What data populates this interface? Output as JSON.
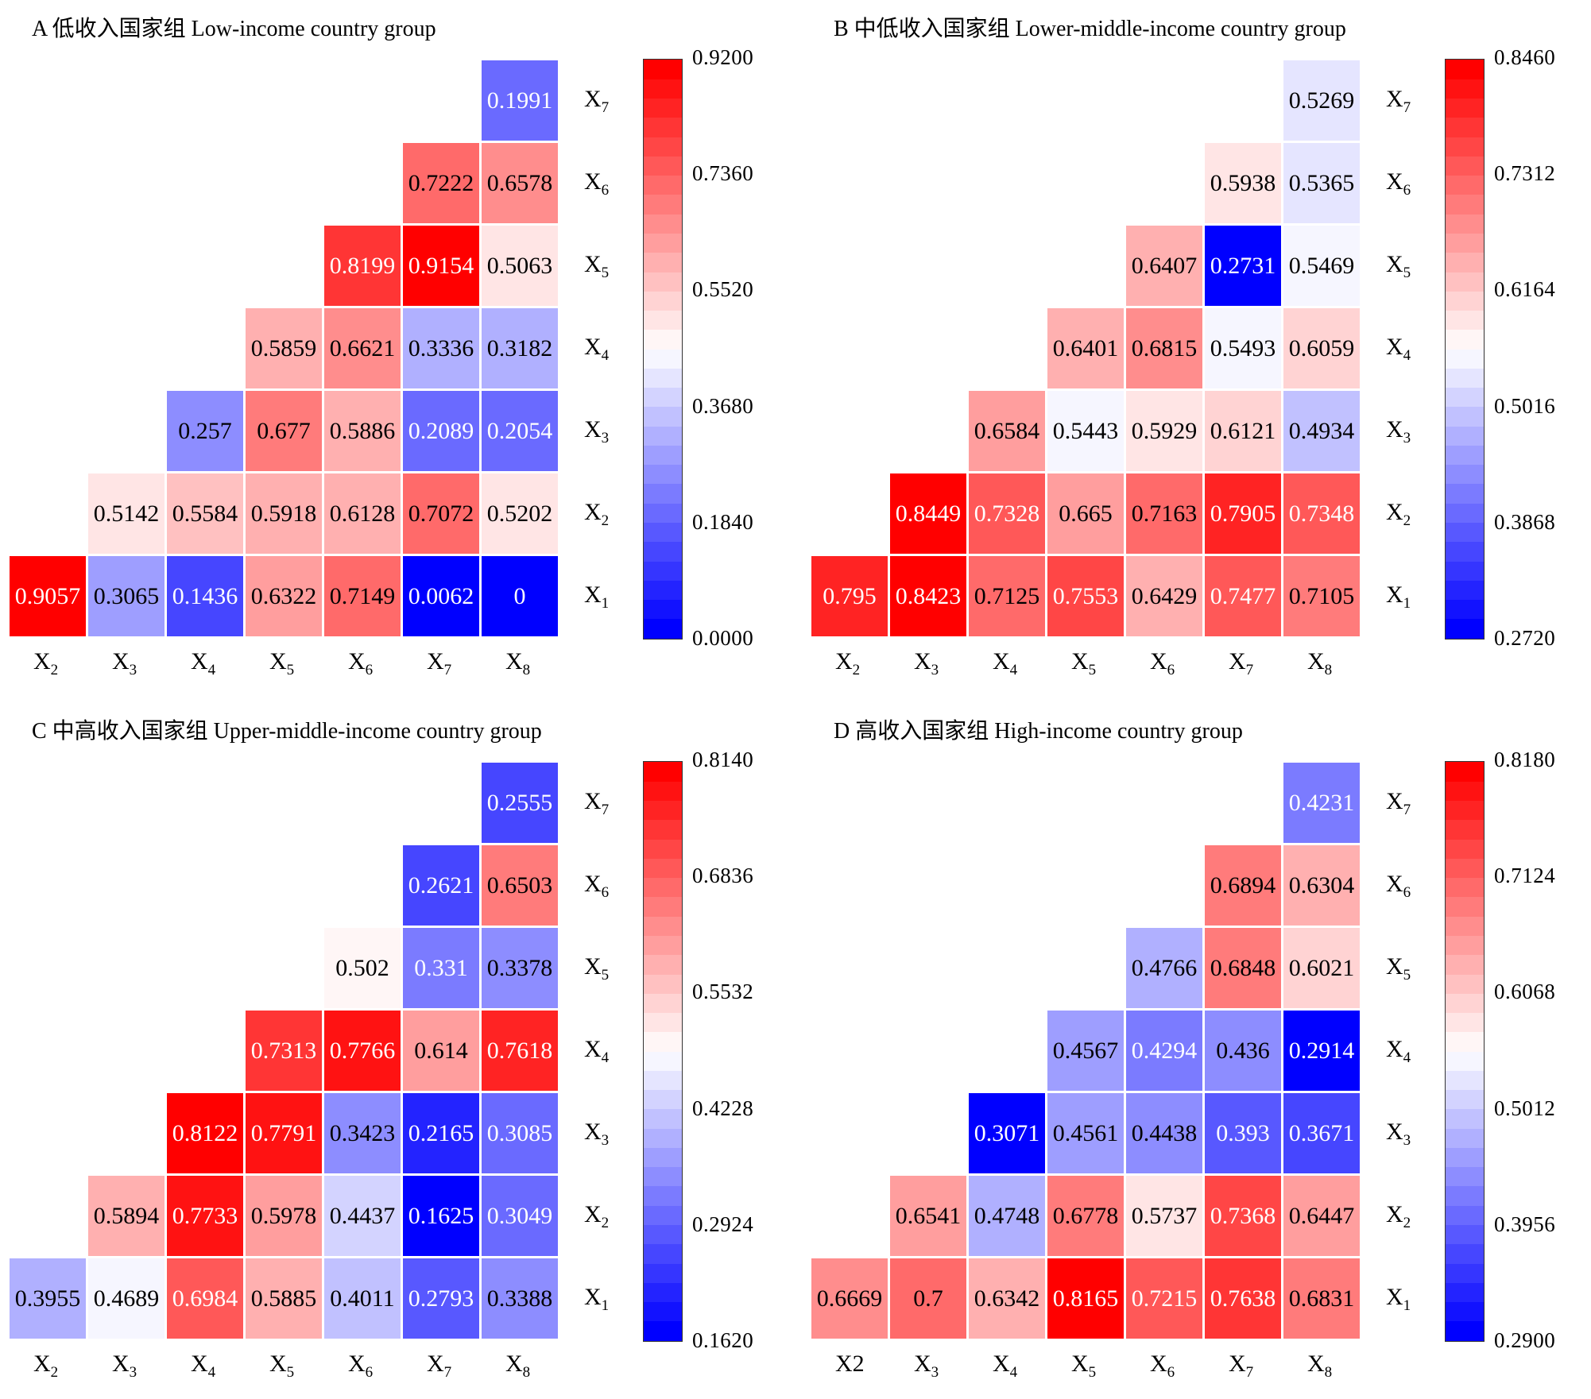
{
  "chart_data": [
    {
      "type": "heatmap",
      "panel": "A",
      "title": "A 低收入国家组 Low-income country group",
      "x_labels": [
        [
          "X",
          "2"
        ],
        [
          "X",
          "3"
        ],
        [
          "X",
          "4"
        ],
        [
          "X",
          "5"
        ],
        [
          "X",
          "6"
        ],
        [
          "X",
          "7"
        ],
        [
          "X",
          "8"
        ]
      ],
      "y_labels": [
        [
          "X",
          "1"
        ],
        [
          "X",
          "2"
        ],
        [
          "X",
          "3"
        ],
        [
          "X",
          "4"
        ],
        [
          "X",
          "5"
        ],
        [
          "X",
          "6"
        ],
        [
          "X",
          "7"
        ]
      ],
      "rows": [
        {
          "y": "X1",
          "values": [
            0.9057,
            0.3065,
            0.1436,
            0.6322,
            0.7149,
            0.0062,
            0
          ]
        },
        {
          "y": "X2",
          "values": [
            null,
            0.5142,
            0.5584,
            0.5918,
            0.6128,
            0.7072,
            0.5202
          ]
        },
        {
          "y": "X3",
          "values": [
            null,
            null,
            0.257,
            0.677,
            0.5886,
            0.2089,
            0.2054
          ]
        },
        {
          "y": "X4",
          "values": [
            null,
            null,
            null,
            0.5859,
            0.6621,
            0.3336,
            0.3182
          ]
        },
        {
          "y": "X5",
          "values": [
            null,
            null,
            null,
            null,
            0.8199,
            0.9154,
            0.5063
          ]
        },
        {
          "y": "X6",
          "values": [
            null,
            null,
            null,
            null,
            null,
            0.7222,
            0.6578
          ]
        },
        {
          "y": "X7",
          "values": [
            null,
            null,
            null,
            null,
            null,
            null,
            0.1991
          ]
        }
      ],
      "labels": [
        [
          "0.9057",
          "0.3065",
          "0.1436",
          "0.6322",
          "0.7149",
          "0.0062",
          "0"
        ],
        [
          null,
          "0.5142",
          "0.5584",
          "0.5918",
          "0.6128",
          "0.7072",
          "0.5202"
        ],
        [
          null,
          null,
          "0.257",
          "0.677",
          "0.5886",
          "0.2089",
          "0.2054"
        ],
        [
          null,
          null,
          null,
          "0.5859",
          "0.6621",
          "0.3336",
          "0.3182"
        ],
        [
          null,
          null,
          null,
          null,
          "0.8199",
          "0.9154",
          "0.5063"
        ],
        [
          null,
          null,
          null,
          null,
          null,
          "0.7222",
          "0.6578"
        ],
        [
          null,
          null,
          null,
          null,
          null,
          null,
          "0.1991"
        ]
      ],
      "colorbar": {
        "min": 0.0,
        "max": 0.92,
        "steps": 30,
        "ticks": [
          "0.0000",
          "0.1840",
          "0.3680",
          "0.5520",
          "0.7360",
          "0.9200"
        ]
      }
    },
    {
      "type": "heatmap",
      "panel": "B",
      "title": "B 中低收入国家组 Lower-middle-income country group",
      "x_labels": [
        [
          "X",
          "2"
        ],
        [
          "X",
          "3"
        ],
        [
          "X",
          "4"
        ],
        [
          "X",
          "5"
        ],
        [
          "X",
          "6"
        ],
        [
          "X",
          "7"
        ],
        [
          "X",
          "8"
        ]
      ],
      "y_labels": [
        [
          "X",
          "1"
        ],
        [
          "X",
          "2"
        ],
        [
          "X",
          "3"
        ],
        [
          "X",
          "4"
        ],
        [
          "X",
          "5"
        ],
        [
          "X",
          "6"
        ],
        [
          "X",
          "7"
        ]
      ],
      "rows": [
        {
          "y": "X1",
          "values": [
            0.795,
            0.8423,
            0.7125,
            0.7553,
            0.6429,
            0.7477,
            0.7105
          ]
        },
        {
          "y": "X2",
          "values": [
            null,
            0.8449,
            0.7328,
            0.665,
            0.7163,
            0.7905,
            0.7348
          ]
        },
        {
          "y": "X3",
          "values": [
            null,
            null,
            0.6584,
            0.5443,
            0.5929,
            0.6121,
            0.4934
          ]
        },
        {
          "y": "X4",
          "values": [
            null,
            null,
            null,
            0.6401,
            0.6815,
            0.5493,
            0.6059
          ]
        },
        {
          "y": "X5",
          "values": [
            null,
            null,
            null,
            null,
            0.6407,
            0.2731,
            0.5469
          ]
        },
        {
          "y": "X6",
          "values": [
            null,
            null,
            null,
            null,
            null,
            0.5938,
            0.5365
          ]
        },
        {
          "y": "X7",
          "values": [
            null,
            null,
            null,
            null,
            null,
            null,
            0.5269
          ]
        }
      ],
      "labels": [
        [
          "0.795",
          "0.8423",
          "0.7125",
          "0.7553",
          "0.6429",
          "0.7477",
          "0.7105"
        ],
        [
          null,
          "0.8449",
          "0.7328",
          "0.665",
          "0.7163",
          "0.7905",
          "0.7348"
        ],
        [
          null,
          null,
          "0.6584",
          "0.5443",
          "0.5929",
          "0.6121",
          "0.4934"
        ],
        [
          null,
          null,
          null,
          "0.6401",
          "0.6815",
          "0.5493",
          "0.6059"
        ],
        [
          null,
          null,
          null,
          null,
          "0.6407",
          "0.2731",
          "0.5469"
        ],
        [
          null,
          null,
          null,
          null,
          null,
          "0.5938",
          "0.5365"
        ],
        [
          null,
          null,
          null,
          null,
          null,
          null,
          "0.5269"
        ]
      ],
      "colorbar": {
        "min": 0.272,
        "max": 0.846,
        "steps": 30,
        "ticks": [
          "0.2720",
          "0.3868",
          "0.5016",
          "0.6164",
          "0.7312",
          "0.8460"
        ]
      }
    },
    {
      "type": "heatmap",
      "panel": "C",
      "title": "C 中高收入国家组 Upper-middle-income country group",
      "x_labels": [
        [
          "X",
          "2"
        ],
        [
          "X",
          "3"
        ],
        [
          "X",
          "4"
        ],
        [
          "X",
          "5"
        ],
        [
          "X",
          "6"
        ],
        [
          "X",
          "7"
        ],
        [
          "X",
          "8"
        ]
      ],
      "y_labels": [
        [
          "X",
          "1"
        ],
        [
          "X",
          "2"
        ],
        [
          "X",
          "3"
        ],
        [
          "X",
          "4"
        ],
        [
          "X",
          "5"
        ],
        [
          "X",
          "6"
        ],
        [
          "X",
          "7"
        ]
      ],
      "rows": [
        {
          "y": "X1",
          "values": [
            0.3955,
            0.4689,
            0.6984,
            0.5885,
            0.4011,
            0.2793,
            0.3388
          ]
        },
        {
          "y": "X2",
          "values": [
            null,
            0.5894,
            0.7733,
            0.5978,
            0.4437,
            0.1625,
            0.3049
          ]
        },
        {
          "y": "X3",
          "values": [
            null,
            null,
            0.8122,
            0.7791,
            0.3423,
            0.2165,
            0.3085
          ]
        },
        {
          "y": "X4",
          "values": [
            null,
            null,
            null,
            0.7313,
            0.7766,
            0.614,
            0.7618
          ]
        },
        {
          "y": "X5",
          "values": [
            null,
            null,
            null,
            null,
            0.502,
            0.331,
            0.3378
          ]
        },
        {
          "y": "X6",
          "values": [
            null,
            null,
            null,
            null,
            null,
            0.2621,
            0.6503
          ]
        },
        {
          "y": "X7",
          "values": [
            null,
            null,
            null,
            null,
            null,
            null,
            0.2555
          ]
        }
      ],
      "labels": [
        [
          "0.3955",
          "0.4689",
          "0.6984",
          "0.5885",
          "0.4011",
          "0.2793",
          "0.3388"
        ],
        [
          null,
          "0.5894",
          "0.7733",
          "0.5978",
          "0.4437",
          "0.1625",
          "0.3049"
        ],
        [
          null,
          null,
          "0.8122",
          "0.7791",
          "0.3423",
          "0.2165",
          "0.3085"
        ],
        [
          null,
          null,
          null,
          "0.7313",
          "0.7766",
          "0.614",
          "0.7618"
        ],
        [
          null,
          null,
          null,
          null,
          "0.502",
          "0.331",
          "0.3378"
        ],
        [
          null,
          null,
          null,
          null,
          null,
          "0.2621",
          "0.6503"
        ],
        [
          null,
          null,
          null,
          null,
          null,
          null,
          "0.2555"
        ]
      ],
      "colorbar": {
        "min": 0.162,
        "max": 0.814,
        "steps": 30,
        "ticks": [
          "0.1620",
          "0.2924",
          "0.4228",
          "0.5532",
          "0.6836",
          "0.8140"
        ]
      }
    },
    {
      "type": "heatmap",
      "panel": "D",
      "title": "D 高收入国家组 High-income country group",
      "x_labels": [
        [
          "X2",
          ""
        ],
        [
          "X",
          "3"
        ],
        [
          "X",
          "4"
        ],
        [
          "X",
          "5"
        ],
        [
          "X",
          "6"
        ],
        [
          "X",
          "7"
        ],
        [
          "X",
          "8"
        ]
      ],
      "y_labels": [
        [
          "X",
          "1"
        ],
        [
          "X",
          "2"
        ],
        [
          "X",
          "3"
        ],
        [
          "X",
          "4"
        ],
        [
          "X",
          "5"
        ],
        [
          "X",
          "6"
        ],
        [
          "X",
          "7"
        ]
      ],
      "rows": [
        {
          "y": "X1",
          "values": [
            0.6669,
            0.7,
            0.6342,
            0.8165,
            0.7215,
            0.7638,
            0.6831
          ]
        },
        {
          "y": "X2",
          "values": [
            null,
            0.6541,
            0.4748,
            0.6778,
            0.5737,
            0.7368,
            0.6447
          ]
        },
        {
          "y": "X3",
          "values": [
            null,
            null,
            0.3071,
            0.4561,
            0.4438,
            0.393,
            0.3671
          ]
        },
        {
          "y": "X4",
          "values": [
            null,
            null,
            null,
            0.4567,
            0.4294,
            0.436,
            0.2914
          ]
        },
        {
          "y": "X5",
          "values": [
            null,
            null,
            null,
            null,
            0.4766,
            0.6848,
            0.6021
          ]
        },
        {
          "y": "X6",
          "values": [
            null,
            null,
            null,
            null,
            null,
            0.6894,
            0.6304
          ]
        },
        {
          "y": "X7",
          "values": [
            null,
            null,
            null,
            null,
            null,
            null,
            0.4231
          ]
        }
      ],
      "labels": [
        [
          "0.6669",
          "0.7",
          "0.6342",
          "0.8165",
          "0.7215",
          "0.7638",
          "0.6831"
        ],
        [
          null,
          "0.6541",
          "0.4748",
          "0.6778",
          "0.5737",
          "0.7368",
          "0.6447"
        ],
        [
          null,
          null,
          "0.3071",
          "0.4561",
          "0.4438",
          "0.393",
          "0.3671"
        ],
        [
          null,
          null,
          null,
          "0.4567",
          "0.4294",
          "0.436",
          "0.2914"
        ],
        [
          null,
          null,
          null,
          null,
          "0.4766",
          "0.6848",
          "0.6021"
        ],
        [
          null,
          null,
          null,
          null,
          null,
          "0.6894",
          "0.6304"
        ],
        [
          null,
          null,
          null,
          null,
          null,
          null,
          "0.4231"
        ]
      ],
      "colorbar": {
        "min": 0.29,
        "max": 0.818,
        "steps": 30,
        "ticks": [
          "0.2900",
          "0.3956",
          "0.5012",
          "0.6068",
          "0.7124",
          "0.8180"
        ]
      }
    }
  ],
  "colormap": {
    "low": "#0000ff",
    "mid": "#ffffff",
    "high": "#ff0000"
  }
}
